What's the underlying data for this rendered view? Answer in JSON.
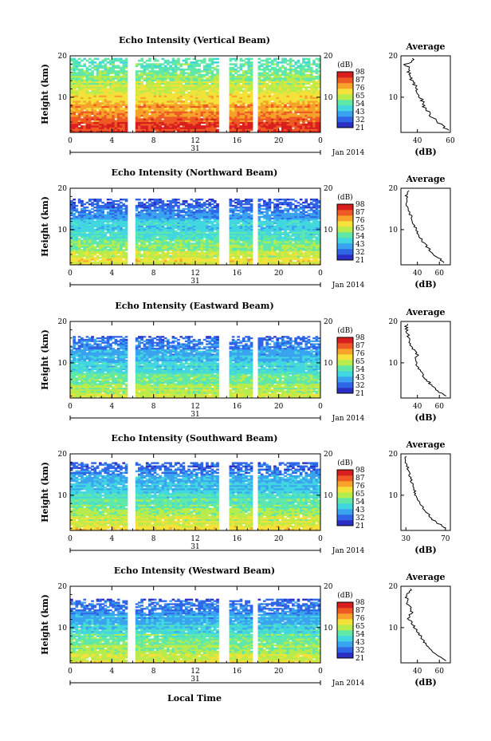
{
  "colors": {
    "colormap": [
      "#2b2fc4",
      "#2f66e6",
      "#3aa3f0",
      "#42d7e0",
      "#5fe8a8",
      "#b7ec4c",
      "#f4e13a",
      "#f6a22b",
      "#ef5a24",
      "#d81f1f"
    ],
    "background": "#ffffff",
    "line": "#000000"
  },
  "figure": {
    "xlabel": "Local Time",
    "date_label": "Jan 2014",
    "day_label": "31",
    "x_ticks": [
      "0",
      "4",
      "8",
      "12",
      "16",
      "20",
      "0"
    ],
    "y_tick_labels": [
      "10",
      "20"
    ],
    "ylabel": "Height (km)",
    "colorbar_unit": "(dB)",
    "colorbar_ticks": [
      "21",
      "32",
      "43",
      "54",
      "65",
      "76",
      "87",
      "98"
    ],
    "avg_title": "Average",
    "avg_xlabel": "(dB)",
    "data_gaps_hours": [
      [
        5.5,
        6.2
      ],
      [
        14.3,
        15.2
      ],
      [
        17.5,
        18.0
      ]
    ]
  },
  "panels": [
    {
      "title": "Echo Intensity (Vertical Beam)",
      "avg_ticks": [
        "40",
        "60"
      ],
      "ticks_s": [
        "21",
        "32",
        "43",
        "54",
        "65",
        "76",
        "87",
        "98"
      ]
    },
    {
      "title": "Echo Intensity (Northward Beam)",
      "avg_ticks": [
        "40",
        "60"
      ],
      "ticks_s": [
        "21",
        "32",
        "43",
        "54",
        "65",
        "76",
        "87",
        "98"
      ]
    },
    {
      "title": "Echo Intensity (Eastward Beam)",
      "avg_ticks": [
        "40",
        "60"
      ],
      "ticks_s": [
        "21",
        "32",
        "43",
        "54",
        "65",
        "76",
        "87",
        "98"
      ]
    },
    {
      "title": "Echo Intensity (Southward Beam)",
      "avg_ticks": [
        "30",
        "70"
      ],
      "ticks_s": [
        "21",
        "32",
        "43",
        "54",
        "65",
        "76",
        "87",
        "98"
      ]
    },
    {
      "title": "Echo Intensity (Westward Beam)",
      "avg_ticks": [
        "40",
        "60"
      ],
      "ticks_s": [
        "21",
        "32",
        "43",
        "54",
        "65",
        "76",
        "87",
        "98"
      ]
    }
  ],
  "chart_data": [
    {
      "type": "heatmap",
      "title": "Echo Intensity (Vertical Beam)",
      "xlabel": "",
      "ylabel": "Height (km)",
      "x_range_hours": [
        0,
        24
      ],
      "ylim_km": [
        1.5,
        20
      ],
      "colorbar_range_db": [
        21,
        98
      ],
      "profile_top_db": 50,
      "profile_bottom_db": 92,
      "clutter_top_km": 19.5,
      "avg_profile": {
        "title": "Average",
        "xlabel": "(dB)",
        "xlim": [
          30,
          60
        ],
        "heights_km": [
          2,
          4,
          6,
          8,
          10,
          12,
          14,
          16,
          18,
          19
        ],
        "values_db": [
          58,
          52,
          47,
          44,
          42,
          39,
          37,
          35,
          33,
          37
        ]
      }
    },
    {
      "type": "heatmap",
      "title": "Echo Intensity (Northward Beam)",
      "xlabel": "",
      "ylabel": "Height (km)",
      "x_range_hours": [
        0,
        24
      ],
      "ylim_km": [
        1.5,
        20
      ],
      "colorbar_range_db": [
        21,
        98
      ],
      "profile_top_db": 30,
      "profile_bottom_db": 70,
      "clutter_top_km": 17.5,
      "avg_profile": {
        "title": "Average",
        "xlabel": "(dB)",
        "xlim": [
          25,
          70
        ],
        "heights_km": [
          2,
          4,
          6,
          8,
          10,
          12,
          14,
          16,
          18,
          19
        ],
        "values_db": [
          65,
          55,
          48,
          43,
          39,
          36,
          33,
          31,
          30,
          31
        ]
      }
    },
    {
      "type": "heatmap",
      "title": "Echo Intensity (Eastward Beam)",
      "xlabel": "",
      "ylabel": "Height (km)",
      "x_range_hours": [
        0,
        24
      ],
      "ylim_km": [
        1.5,
        20
      ],
      "colorbar_range_db": [
        21,
        98
      ],
      "profile_top_db": 30,
      "profile_bottom_db": 68,
      "clutter_top_km": 16.5,
      "avg_profile": {
        "title": "Average",
        "xlabel": "(dB)",
        "xlim": [
          25,
          70
        ],
        "heights_km": [
          2,
          4,
          6,
          8,
          10,
          12,
          14,
          16,
          18,
          19
        ],
        "values_db": [
          65,
          55,
          48,
          42,
          38,
          40,
          35,
          32,
          30,
          30
        ]
      }
    },
    {
      "type": "heatmap",
      "title": "Echo Intensity (Southward Beam)",
      "xlabel": "",
      "ylabel": "Height (km)",
      "x_range_hours": [
        0,
        24
      ],
      "ylim_km": [
        1.5,
        20
      ],
      "colorbar_range_db": [
        21,
        98
      ],
      "profile_top_db": 30,
      "profile_bottom_db": 72,
      "clutter_top_km": 18.0,
      "avg_profile": {
        "title": "Average",
        "xlabel": "(dB)",
        "xlim": [
          25,
          75
        ],
        "heights_km": [
          2,
          4,
          6,
          8,
          10,
          12,
          14,
          16,
          18,
          19
        ],
        "values_db": [
          70,
          58,
          50,
          44,
          40,
          37,
          35,
          32,
          30,
          30
        ]
      }
    },
    {
      "type": "heatmap",
      "title": "Echo Intensity (Westward Beam)",
      "xlabel": "Local Time",
      "ylabel": "Height (km)",
      "x_range_hours": [
        0,
        24
      ],
      "ylim_km": [
        1.5,
        20
      ],
      "colorbar_range_db": [
        21,
        98
      ],
      "profile_top_db": 30,
      "profile_bottom_db": 70,
      "clutter_top_km": 17.0,
      "avg_profile": {
        "title": "Average",
        "xlabel": "(dB)",
        "xlim": [
          25,
          70
        ],
        "heights_km": [
          2,
          4,
          6,
          8,
          10,
          12,
          14,
          16,
          18,
          19
        ],
        "values_db": [
          65,
          55,
          48,
          43,
          38,
          32,
          35,
          31,
          30,
          34
        ]
      }
    }
  ]
}
